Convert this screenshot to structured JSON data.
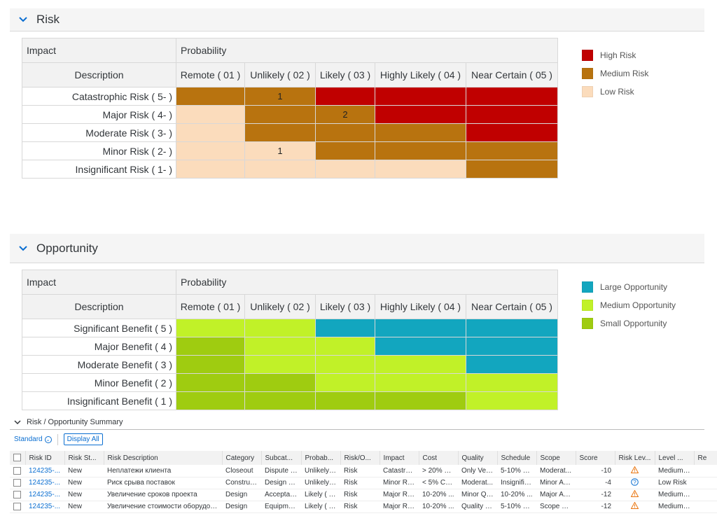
{
  "risk": {
    "title": "Risk",
    "impact_label": "Impact",
    "probability_label": "Probability",
    "description_label": "Description",
    "columns": [
      "Remote ( 01 )",
      "Unlikely ( 02 )",
      "Likely ( 03 )",
      "Highly Likely ( 04 )",
      "Near Certain ( 05 )"
    ],
    "rows": [
      {
        "label": "Catastrophic Risk ( 5- )",
        "cells": [
          {
            "level": "medium",
            "count": ""
          },
          {
            "level": "medium",
            "count": "1"
          },
          {
            "level": "high",
            "count": ""
          },
          {
            "level": "high",
            "count": ""
          },
          {
            "level": "high",
            "count": ""
          }
        ]
      },
      {
        "label": "Major Risk ( 4- )",
        "cells": [
          {
            "level": "low",
            "count": ""
          },
          {
            "level": "medium",
            "count": ""
          },
          {
            "level": "medium",
            "count": "2"
          },
          {
            "level": "high",
            "count": ""
          },
          {
            "level": "high",
            "count": ""
          }
        ]
      },
      {
        "label": "Moderate Risk ( 3- )",
        "cells": [
          {
            "level": "low",
            "count": ""
          },
          {
            "level": "medium",
            "count": ""
          },
          {
            "level": "medium",
            "count": ""
          },
          {
            "level": "medium",
            "count": ""
          },
          {
            "level": "high",
            "count": ""
          }
        ]
      },
      {
        "label": "Minor Risk ( 2- )",
        "cells": [
          {
            "level": "low",
            "count": ""
          },
          {
            "level": "low",
            "count": "1"
          },
          {
            "level": "medium",
            "count": ""
          },
          {
            "level": "medium",
            "count": ""
          },
          {
            "level": "medium",
            "count": ""
          }
        ]
      },
      {
        "label": "Insignificant Risk ( 1- )",
        "cells": [
          {
            "level": "low",
            "count": ""
          },
          {
            "level": "low",
            "count": ""
          },
          {
            "level": "low",
            "count": ""
          },
          {
            "level": "low",
            "count": ""
          },
          {
            "level": "medium",
            "count": ""
          }
        ]
      }
    ],
    "legend": [
      {
        "label": "High Risk",
        "level": "high"
      },
      {
        "label": "Medium Risk",
        "level": "medium"
      },
      {
        "label": "Low Risk",
        "level": "low"
      }
    ],
    "colors": {
      "high": "#c00000",
      "medium": "#b8730f",
      "low": "#fbdcbc"
    }
  },
  "opportunity": {
    "title": "Opportunity",
    "impact_label": "Impact",
    "probability_label": "Probability",
    "description_label": "Description",
    "columns": [
      "Remote ( 01 )",
      "Unlikely ( 02 )",
      "Likely ( 03 )",
      "Highly Likely ( 04 )",
      "Near Certain ( 05 )"
    ],
    "rows": [
      {
        "label": "Significant Benefit ( 5 )",
        "cells": [
          {
            "level": "medium",
            "count": ""
          },
          {
            "level": "medium",
            "count": ""
          },
          {
            "level": "large",
            "count": ""
          },
          {
            "level": "large",
            "count": ""
          },
          {
            "level": "large",
            "count": ""
          }
        ]
      },
      {
        "label": "Major Benefit ( 4 )",
        "cells": [
          {
            "level": "small",
            "count": ""
          },
          {
            "level": "medium",
            "count": ""
          },
          {
            "level": "medium",
            "count": ""
          },
          {
            "level": "large",
            "count": ""
          },
          {
            "level": "large",
            "count": ""
          }
        ]
      },
      {
        "label": "Moderate Benefit ( 3 )",
        "cells": [
          {
            "level": "small",
            "count": ""
          },
          {
            "level": "medium",
            "count": ""
          },
          {
            "level": "medium",
            "count": ""
          },
          {
            "level": "medium",
            "count": ""
          },
          {
            "level": "large",
            "count": ""
          }
        ]
      },
      {
        "label": "Minor Benefit ( 2 )",
        "cells": [
          {
            "level": "small",
            "count": ""
          },
          {
            "level": "small",
            "count": ""
          },
          {
            "level": "medium",
            "count": ""
          },
          {
            "level": "medium",
            "count": ""
          },
          {
            "level": "medium",
            "count": ""
          }
        ]
      },
      {
        "label": "Insignificant Benefit ( 1 )",
        "cells": [
          {
            "level": "small",
            "count": ""
          },
          {
            "level": "small",
            "count": ""
          },
          {
            "level": "small",
            "count": ""
          },
          {
            "level": "small",
            "count": ""
          },
          {
            "level": "medium",
            "count": ""
          }
        ]
      }
    ],
    "legend": [
      {
        "label": "Large Opportunity",
        "level": "large"
      },
      {
        "label": "Medium Opportunity",
        "level": "medium"
      },
      {
        "label": "Small Opportunity",
        "level": "small"
      }
    ],
    "colors": {
      "large": "#12a6bf",
      "medium": "#c1f128",
      "small": "#9fcc10"
    }
  },
  "summary": {
    "title": "Risk / Opportunity Summary",
    "variant_label": "Standard",
    "display_all_label": "Display All",
    "columns": [
      "Risk ID",
      "Risk St...",
      "Risk Description",
      "Category",
      "Subcat...",
      "Probab...",
      "Risk/O...",
      "Impact",
      "Cost",
      "Quality",
      "Schedule",
      "Scope",
      "Score",
      "Risk Lev...",
      "Level ...",
      "Re"
    ],
    "rows": [
      {
        "id": "124235-...",
        "status": "New",
        "description": "Неплатежи клиента",
        "category": "Closeout",
        "subcategory": "Dispute R...",
        "probability": "Unlikely (...",
        "type": "Risk",
        "impact": "Catastrop...",
        "cost": "> 20% C...",
        "quality": "Only Very...",
        "schedule": "5-10% O...",
        "scope": "Moderat...",
        "score": "-10",
        "risk_level_icon": "warning-icon",
        "level": "Medium ..."
      },
      {
        "id": "124235-...",
        "status": "New",
        "description": "Риск срыва поставок",
        "category": "Construct...",
        "subcategory": "Design Q...",
        "probability": "Unlikely (...",
        "type": "Risk",
        "impact": "Minor Ris...",
        "cost": "< 5% Cos...",
        "quality": "Moderat...",
        "schedule": "Insignific...",
        "scope": "Minor Are...",
        "score": "-4",
        "risk_level_icon": "question-icon",
        "level": "Low Risk"
      },
      {
        "id": "124235-...",
        "status": "New",
        "description": "Увеличение сроков проекта",
        "category": "Design",
        "subcategory": "Acceptan...",
        "probability": "Likely ( 03 )",
        "type": "Risk",
        "impact": "Major Ris...",
        "cost": "10-20% ...",
        "quality": "Minor Qu...",
        "schedule": "10-20% ...",
        "scope": "Major Are...",
        "score": "-12",
        "risk_level_icon": "warning-icon",
        "level": "Medium ..."
      },
      {
        "id": "124235-...",
        "status": "New",
        "description": "Увеличение стоимости оборудова...",
        "category": "Design",
        "subcategory": "Equipment",
        "probability": "Likely ( 03 )",
        "type": "Risk",
        "impact": "Major Ris...",
        "cost": "10-20% ...",
        "quality": "Quality R...",
        "schedule": "5-10% O...",
        "scope": "Scope Re...",
        "score": "-12",
        "risk_level_icon": "warning-icon",
        "level": "Medium ..."
      }
    ]
  }
}
